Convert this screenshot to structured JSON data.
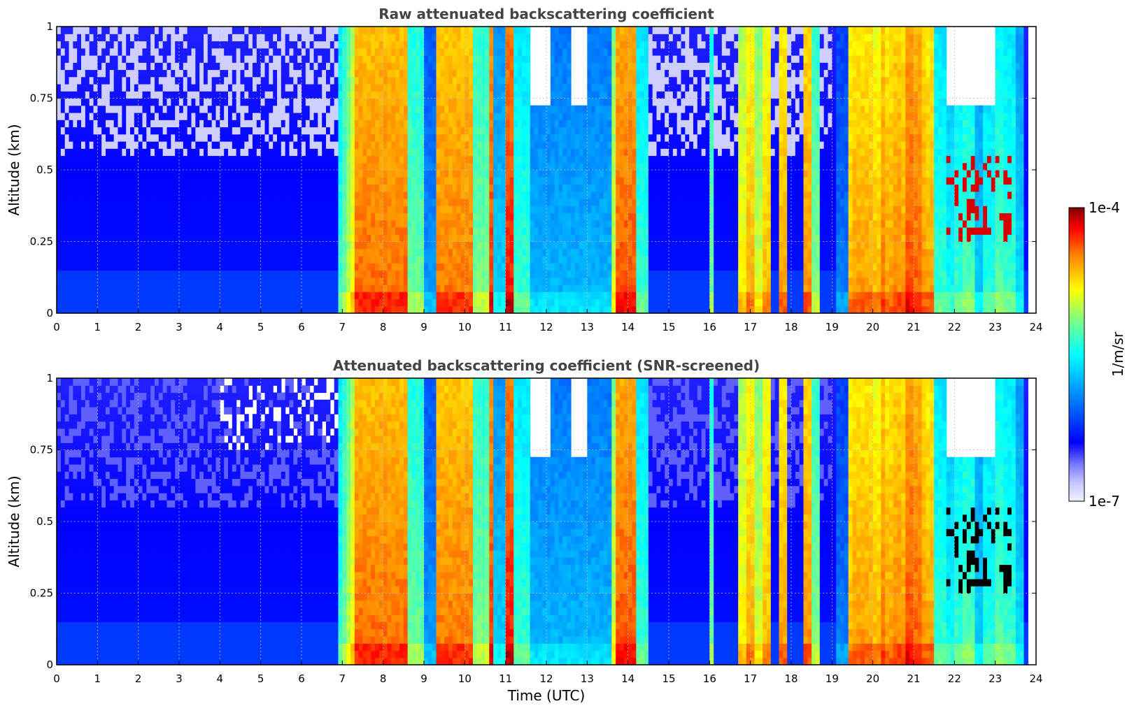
{
  "chart_data": [
    {
      "type": "heatmap",
      "title": "Raw attenuated backscattering coefficient",
      "xlabel": "",
      "ylabel": "Altitude (km)",
      "xlim": [
        0,
        24
      ],
      "ylim": [
        0,
        1
      ],
      "xticks": [
        "0",
        "1",
        "2",
        "3",
        "4",
        "5",
        "6",
        "7",
        "8",
        "9",
        "10",
        "11",
        "12",
        "13",
        "14",
        "15",
        "16",
        "17",
        "18",
        "19",
        "20",
        "21",
        "22",
        "23",
        "24"
      ],
      "yticks": [
        "0",
        "0.25",
        "0.5",
        "0.75",
        "1"
      ],
      "grid": true,
      "colormap": "jet",
      "color_scale": "log",
      "value_range": [
        "1e-7",
        "1e-4"
      ],
      "screened": false
    },
    {
      "type": "heatmap",
      "title": "Attenuated backscattering coefficient (SNR-screened)",
      "xlabel": "Time (UTC)",
      "ylabel": "Altitude (km)",
      "xlim": [
        0,
        24
      ],
      "ylim": [
        0,
        1
      ],
      "xticks": [
        "0",
        "1",
        "2",
        "3",
        "4",
        "5",
        "6",
        "7",
        "8",
        "9",
        "10",
        "11",
        "12",
        "13",
        "14",
        "15",
        "16",
        "17",
        "18",
        "19",
        "20",
        "21",
        "22",
        "23",
        "24"
      ],
      "yticks": [
        "0",
        "0.25",
        "0.5",
        "0.75",
        "1"
      ],
      "grid": true,
      "colormap": "jet",
      "color_scale": "log",
      "value_range": [
        "1e-7",
        "1e-4"
      ],
      "screened": true
    }
  ],
  "colorbar": {
    "label": "1/m/sr",
    "max_label": "1e-4",
    "min_label": "1e-7",
    "colors": [
      "#f0f0ff",
      "#c8c8ff",
      "#8080ff",
      "#0000ff",
      "#0080ff",
      "#00ffff",
      "#80ff80",
      "#ffff00",
      "#ff8000",
      "#ff0000",
      "#800000"
    ]
  }
}
